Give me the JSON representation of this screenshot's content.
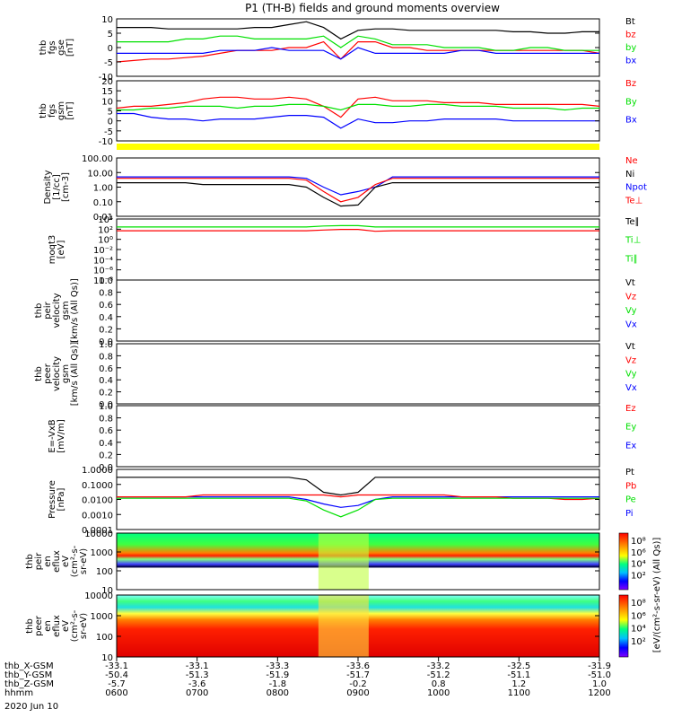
{
  "title": "P1 (TH-B) fields and ground moments overview",
  "colors": {
    "black": "#000000",
    "red": "#ff0000",
    "green": "#00e000",
    "blue": "#0000ff",
    "yellow": "#ffff00"
  },
  "chart_data": [
    {
      "type": "line",
      "ylabel": [
        "thb",
        "fgs",
        "gse",
        "[nT]"
      ],
      "yticks": [
        "10",
        "5",
        "0",
        "-5",
        "-10"
      ],
      "ylim": [
        -10,
        10
      ],
      "legend": [
        {
          "name": "Bt",
          "color": "#000000"
        },
        {
          "name": "bz",
          "color": "#ff0000"
        },
        {
          "name": "by",
          "color": "#00e000"
        },
        {
          "name": "bx",
          "color": "#0000ff"
        }
      ],
      "series": [
        {
          "name": "Bt",
          "color": "#000000",
          "values": [
            7,
            7,
            7,
            6.5,
            6.5,
            6.5,
            6.5,
            6.5,
            7,
            7,
            8,
            9,
            7,
            3,
            6,
            6.5,
            6.5,
            6,
            6,
            6,
            6,
            6,
            6,
            5.5,
            5.5,
            5,
            5,
            5.5,
            5.5
          ]
        },
        {
          "name": "bz",
          "color": "#ff0000",
          "values": [
            -5,
            -4.5,
            -4,
            -4,
            -3.5,
            -3,
            -2,
            -1,
            -1,
            -1,
            0,
            0,
            2,
            -4,
            2,
            2,
            0,
            0,
            -1,
            -1,
            -1,
            -1,
            -1,
            -1,
            -1,
            -1,
            -1,
            -1,
            -2
          ]
        },
        {
          "name": "by",
          "color": "#00e000",
          "values": [
            2,
            2,
            2,
            2,
            3,
            3,
            4,
            4,
            3,
            3,
            3,
            3,
            4,
            0,
            4,
            3,
            1,
            1,
            1,
            0,
            0,
            0,
            -1,
            -1,
            0,
            0,
            -1,
            -1,
            -1
          ]
        },
        {
          "name": "bx",
          "color": "#0000ff",
          "values": [
            -2,
            -2,
            -2,
            -2,
            -2,
            -2,
            -1,
            -1,
            -1,
            0,
            -1,
            -1,
            -1,
            -4,
            0,
            -2,
            -2,
            -2,
            -2,
            -2,
            -1,
            -1,
            -2,
            -2,
            -2,
            -2,
            -2,
            -2,
            -2
          ]
        }
      ]
    },
    {
      "type": "line",
      "ylabel": [
        "thb",
        "fgs",
        "gsm",
        "[nT]"
      ],
      "yticks": [
        "20",
        "15",
        "10",
        "5",
        "0",
        "-5",
        "-10"
      ],
      "ylim": [
        -13,
        20
      ],
      "legend": [
        {
          "name": "Bz",
          "color": "#ff0000"
        },
        {
          "name": "By",
          "color": "#00e000"
        },
        {
          "name": "Bx",
          "color": "#0000ff"
        }
      ],
      "series": [
        {
          "name": "Bz",
          "color": "#ff0000",
          "values": [
            5,
            6,
            6,
            7,
            8,
            10,
            11,
            11,
            10,
            10,
            11,
            10,
            6,
            0,
            10,
            11,
            9,
            9,
            9,
            8,
            8,
            8,
            7,
            7,
            7,
            7,
            7,
            7,
            6
          ]
        },
        {
          "name": "By",
          "color": "#00e000",
          "values": [
            4,
            4,
            5,
            5,
            6,
            6,
            6,
            5,
            6,
            6,
            7,
            7,
            6,
            4,
            7,
            7,
            6,
            6,
            7,
            7,
            6,
            6,
            6,
            5,
            5,
            5,
            4,
            5,
            5
          ]
        },
        {
          "name": "Bx",
          "color": "#0000ff",
          "values": [
            2,
            2,
            0,
            -1,
            -1,
            -2,
            -1,
            -1,
            -1,
            0,
            1,
            1,
            0,
            -6,
            -1,
            -3,
            -3,
            -2,
            -2,
            -1,
            -1,
            -1,
            -1,
            -2,
            -2,
            -2,
            -2,
            -2,
            -2
          ]
        }
      ]
    },
    {
      "type": "line",
      "ylabel": [
        "Density",
        "[1/cc]",
        "[cm-3]"
      ],
      "yticks": [
        "100.00",
        "10.00",
        "1.00",
        "0.10",
        "0.01"
      ],
      "ylim": [
        0.01,
        100
      ],
      "log": true,
      "legend": [
        {
          "name": "Ne",
          "color": "#ff0000"
        },
        {
          "name": "Ni",
          "color": "#000000"
        },
        {
          "name": "Npot",
          "color": "#0000ff"
        },
        {
          "name": "Te⊥",
          "color": "#ff0000"
        }
      ],
      "series": [
        {
          "name": "Npot",
          "color": "#0000ff",
          "values": [
            5,
            5,
            5,
            5,
            5,
            5,
            5,
            5,
            5,
            5,
            5,
            4,
            1,
            0.3,
            0.5,
            1,
            5,
            5,
            5,
            5,
            5,
            5,
            5,
            5,
            5,
            5,
            5,
            5,
            5
          ]
        },
        {
          "name": "Ne",
          "color": "#ff0000",
          "values": [
            4,
            4,
            4,
            4,
            4,
            4,
            4,
            4,
            4,
            4,
            4,
            3,
            0.5,
            0.1,
            0.2,
            1.5,
            4,
            4,
            4,
            4,
            4,
            4,
            4,
            4,
            4,
            4,
            4,
            4,
            4
          ]
        },
        {
          "name": "Ni",
          "color": "#000000",
          "values": [
            2,
            2,
            2,
            2,
            2,
            1.5,
            1.5,
            1.5,
            1.5,
            1.5,
            1.5,
            1,
            0.2,
            0.05,
            0.06,
            1,
            2,
            2,
            2,
            2,
            2,
            2,
            2,
            2,
            2,
            2,
            2,
            2,
            2
          ]
        }
      ]
    },
    {
      "type": "line",
      "ylabel": [
        "moqt3",
        "[eV]"
      ],
      "yticks": [
        "10⁴",
        "10²",
        "10⁰",
        "10⁻²",
        "10⁻⁴",
        "10⁻⁶",
        "10⁻⁸"
      ],
      "ylim": [
        1e-09,
        100000.0
      ],
      "log": true,
      "legend": [
        {
          "name": "Te∥",
          "color": "#000000"
        },
        {
          "name": "Ti⊥",
          "color": "#00e000"
        },
        {
          "name": "Ti∥",
          "color": "#00e000"
        }
      ],
      "series": [
        {
          "name": "Ti⊥",
          "color": "#00e000",
          "values": [
            1500,
            1500,
            1500,
            1500,
            1500,
            1500,
            1500,
            1500,
            1500,
            1500,
            1500,
            1500,
            2500,
            3000,
            3000,
            1500,
            1500,
            1500,
            1500,
            1500,
            1500,
            1500,
            1500,
            1500,
            1500,
            1500,
            1500,
            1500,
            1500
          ]
        },
        {
          "name": "Te⊥",
          "color": "#ff0000",
          "values": [
            200,
            200,
            200,
            200,
            200,
            200,
            200,
            200,
            200,
            200,
            200,
            200,
            300,
            400,
            400,
            150,
            200,
            200,
            200,
            200,
            200,
            200,
            200,
            200,
            200,
            200,
            200,
            200,
            200
          ]
        }
      ]
    },
    {
      "type": "line",
      "ylabel": [
        "thb",
        "peir",
        "velocity",
        "gsm",
        "[km/s (All Qs)]"
      ],
      "yticks": [
        "1.0",
        "0.8",
        "0.6",
        "0.4",
        "0.2",
        "0.0"
      ],
      "ylim": [
        0,
        1
      ],
      "legend": [
        {
          "name": "Vt",
          "color": "#000000"
        },
        {
          "name": "Vz",
          "color": "#ff0000"
        },
        {
          "name": "Vy",
          "color": "#00e000"
        },
        {
          "name": "Vx",
          "color": "#0000ff"
        }
      ],
      "series": []
    },
    {
      "type": "line",
      "ylabel": [
        "thb",
        "peer",
        "velocity",
        "gsm",
        "[km/s (All Qs)]"
      ],
      "yticks": [
        "1.0",
        "0.8",
        "0.6",
        "0.4",
        "0.2",
        "0.0"
      ],
      "ylim": [
        0,
        1
      ],
      "legend": [
        {
          "name": "Vt",
          "color": "#000000"
        },
        {
          "name": "Vz",
          "color": "#ff0000"
        },
        {
          "name": "Vy",
          "color": "#00e000"
        },
        {
          "name": "Vx",
          "color": "#0000ff"
        }
      ],
      "series": []
    },
    {
      "type": "line",
      "ylabel": [
        "E=-VxB",
        "[mV/m]"
      ],
      "yticks": [
        "1.0",
        "0.8",
        "0.6",
        "0.4",
        "0.2",
        "0.0"
      ],
      "ylim": [
        0,
        1
      ],
      "legend": [
        {
          "name": "Ez",
          "color": "#ff0000"
        },
        {
          "name": "Ey",
          "color": "#00e000"
        },
        {
          "name": "Ex",
          "color": "#0000ff"
        }
      ],
      "series": []
    },
    {
      "type": "line",
      "ylabel": [
        "Pressure",
        "[nPa]"
      ],
      "yticks": [
        "1.0000",
        "0.1000",
        "0.0100",
        "0.0010",
        "0.0001"
      ],
      "ylim": [
        0.0001,
        1
      ],
      "log": true,
      "legend": [
        {
          "name": "Pt",
          "color": "#000000"
        },
        {
          "name": "Pb",
          "color": "#ff0000"
        },
        {
          "name": "Pe",
          "color": "#00e000"
        },
        {
          "name": "Pi",
          "color": "#0000ff"
        }
      ],
      "series": [
        {
          "name": "Pt",
          "color": "#000000",
          "values": [
            0.3,
            0.3,
            0.3,
            0.3,
            0.3,
            0.3,
            0.3,
            0.3,
            0.3,
            0.3,
            0.3,
            0.2,
            0.03,
            0.02,
            0.03,
            0.3,
            0.3,
            0.3,
            0.3,
            0.3,
            0.3,
            0.3,
            0.3,
            0.3,
            0.3,
            0.3,
            0.3,
            0.3,
            0.3
          ]
        },
        {
          "name": "Pi",
          "color": "#0000ff",
          "values": [
            0.015,
            0.015,
            0.015,
            0.015,
            0.015,
            0.015,
            0.015,
            0.015,
            0.015,
            0.015,
            0.015,
            0.01,
            0.005,
            0.003,
            0.004,
            0.01,
            0.015,
            0.015,
            0.015,
            0.015,
            0.015,
            0.015,
            0.015,
            0.015,
            0.015,
            0.015,
            0.015,
            0.015,
            0.015
          ]
        },
        {
          "name": "Pb",
          "color": "#ff0000",
          "values": [
            0.015,
            0.015,
            0.015,
            0.015,
            0.015,
            0.02,
            0.02,
            0.02,
            0.02,
            0.02,
            0.02,
            0.02,
            0.02,
            0.015,
            0.02,
            0.02,
            0.02,
            0.02,
            0.02,
            0.02,
            0.015,
            0.015,
            0.015,
            0.012,
            0.012,
            0.012,
            0.01,
            0.01,
            0.012
          ]
        },
        {
          "name": "Pe",
          "color": "#00e000",
          "values": [
            0.012,
            0.012,
            0.012,
            0.012,
            0.012,
            0.012,
            0.012,
            0.012,
            0.012,
            0.012,
            0.012,
            0.008,
            0.002,
            0.0007,
            0.002,
            0.01,
            0.012,
            0.012,
            0.012,
            0.012,
            0.012,
            0.012,
            0.012,
            0.012,
            0.012,
            0.012,
            0.012,
            0.012,
            0.012
          ]
        }
      ]
    },
    {
      "type": "heatmap",
      "ylabel": [
        "thb",
        "peir",
        "en",
        "eflux",
        "eV",
        "(cm²-s-",
        "sr-eV)"
      ],
      "yticks": [
        "10000",
        "1000",
        "100",
        "10"
      ],
      "ylim": [
        5,
        20000
      ],
      "log": true
    },
    {
      "type": "heatmap",
      "ylabel": [
        "thb",
        "peer",
        "en",
        "eflux",
        "eV",
        "(cm²-s-",
        "sr-eV)"
      ],
      "yticks": [
        "10000",
        "1000",
        "100",
        "10"
      ],
      "ylim": [
        5,
        20000
      ],
      "log": true
    }
  ],
  "colorbar": {
    "ticks_top": [
      "10⁸",
      "10⁶",
      "10⁴",
      "10²"
    ],
    "ticks_bottom": [
      "10⁸",
      "10⁶",
      "10⁴",
      "10²"
    ],
    "label": "[eV/(cm²-s-sr-eV) (All Qs)]"
  },
  "xaxis": {
    "row_labels": [
      "thb_X-GSM",
      "thb_Y-GSM",
      "thb_Z-GSM",
      "hhmm",
      "2020 Jun 10"
    ],
    "columns": [
      [
        "-33.1",
        "-50.4",
        "-5.7",
        "0600"
      ],
      [
        "-33.1",
        "-51.3",
        "-3.6",
        "0700"
      ],
      [
        "-33.3",
        "-51.9",
        "-1.8",
        "0800"
      ],
      [
        "-33.6",
        "-51.7",
        "-0.2",
        "0900"
      ],
      [
        "-33.2",
        "-51.2",
        "0.8",
        "1000"
      ],
      [
        "-32.5",
        "-51.1",
        "1.2",
        "1100"
      ],
      [
        "-31.9",
        "-51.0",
        "1.0",
        "1200"
      ]
    ]
  }
}
